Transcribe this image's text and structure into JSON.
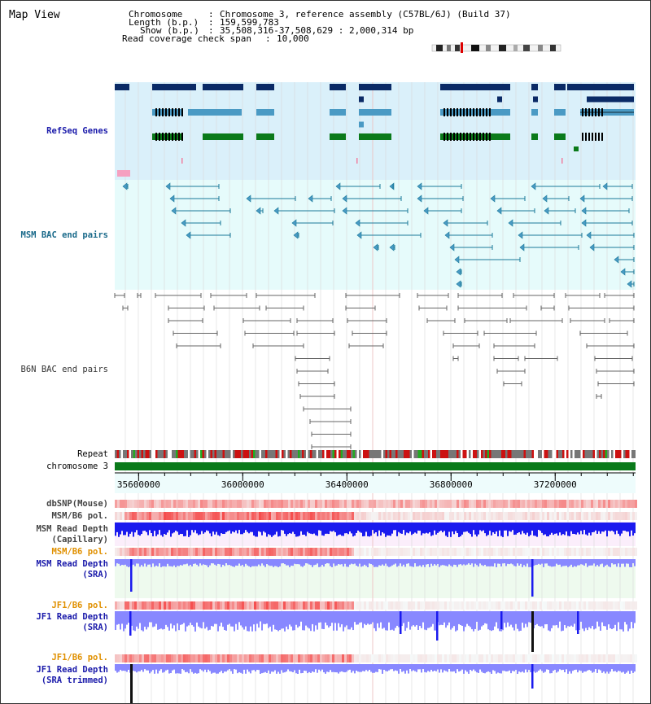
{
  "title": "Map View",
  "header": {
    "chromosome_key": "Chromosome",
    "chromosome_val": "Chromosome 3, reference assembly (C57BL/6J) (Build 37)",
    "length_key": "Length (b.p.)",
    "length_val": "159,599,783",
    "show_key": "Show (b.p.)",
    "show_val": "35,508,316-37,508,629 : 2,000,314 bp",
    "coverage_key": "Read coverage check span",
    "coverage_val": "10,000"
  },
  "region": {
    "start": 35508316,
    "end": 37508629
  },
  "axis": {
    "ticks": [
      35600000,
      36000000,
      36400000,
      36800000,
      37200000
    ],
    "labels": [
      "35600000",
      "36000000",
      "36400000",
      "36800000",
      "37200000"
    ]
  },
  "tracks": {
    "refseq": "RefSeq Genes",
    "msm_bac": "MSM BAC end pairs",
    "b6n_bac": "B6N BAC end pairs",
    "repeat": "Repeat",
    "chromosome": "chromosome 3",
    "dbsnp": "dbSNP(Mouse)",
    "msm_pol_1": "MSM/B6 pol.",
    "msm_depth_cap_1": "MSM Read Depth",
    "msm_depth_cap_2": "(Capillary)",
    "msm_pol_2": "MSM/B6 pol.",
    "msm_depth_sra_1": "MSM Read Depth",
    "msm_depth_sra_2": "(SRA)",
    "jf1_pol_1": "JF1/B6 pol.",
    "jf1_depth_sra_1": "JF1 Read Depth",
    "jf1_depth_sra_2": "(SRA)",
    "jf1_pol_2": "JF1/B6 pol.",
    "jf1_depth_trim_1": "JF1 Read Depth",
    "jf1_depth_trim_2": "(SRA trimmed)"
  },
  "colors": {
    "refseq_bg": "#daf0fa",
    "msm_bg": "#e6fbfb",
    "gene_dark": "#0a2a66",
    "gene_mid": "#4a9ac4",
    "gene_green": "#0a7a1a",
    "msm_line": "#1a7a9a",
    "b6n_line": "#666666",
    "chrom_green": "#0a7a1a",
    "snp_red": "#ee3333",
    "depth_blue": "#1a1aee",
    "depth_light": "#8888ff",
    "pol_orange": "#e09000",
    "label_blue": "#1a1aaa",
    "label_teal": "#1a6a8a"
  }
}
